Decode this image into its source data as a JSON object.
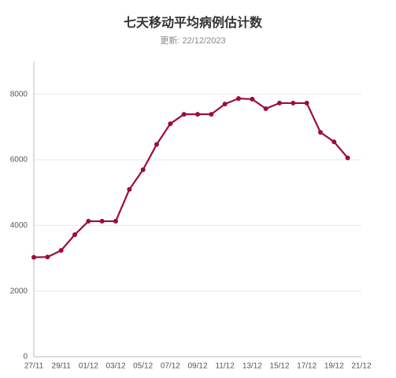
{
  "chart_data": {
    "type": "line",
    "title": "七天移动平均病例估计数",
    "subtitle": "更新: 22/12/2023",
    "categories": [
      "27/11",
      null,
      "29/11",
      null,
      "01/12",
      null,
      "03/12",
      null,
      "05/12",
      null,
      "07/12",
      null,
      "09/12",
      null,
      "11/12",
      null,
      "13/12",
      null,
      "15/12",
      null,
      "17/12",
      null,
      "19/12",
      null,
      "21/12"
    ],
    "series": [
      {
        "name": "七天移动平均",
        "color": "#9b0d3c",
        "values": [
          3030,
          3040,
          3240,
          3720,
          4130,
          4130,
          4130,
          5100,
          5700,
          6470,
          7100,
          7390,
          7390,
          7390,
          7700,
          7870,
          7850,
          7560,
          7730,
          7730,
          7730,
          6840,
          6550,
          6060,
          null
        ]
      }
    ],
    "ylim": [
      0,
      9000
    ],
    "yticks": [
      0,
      2000,
      4000,
      6000,
      8000
    ],
    "grid": true
  }
}
